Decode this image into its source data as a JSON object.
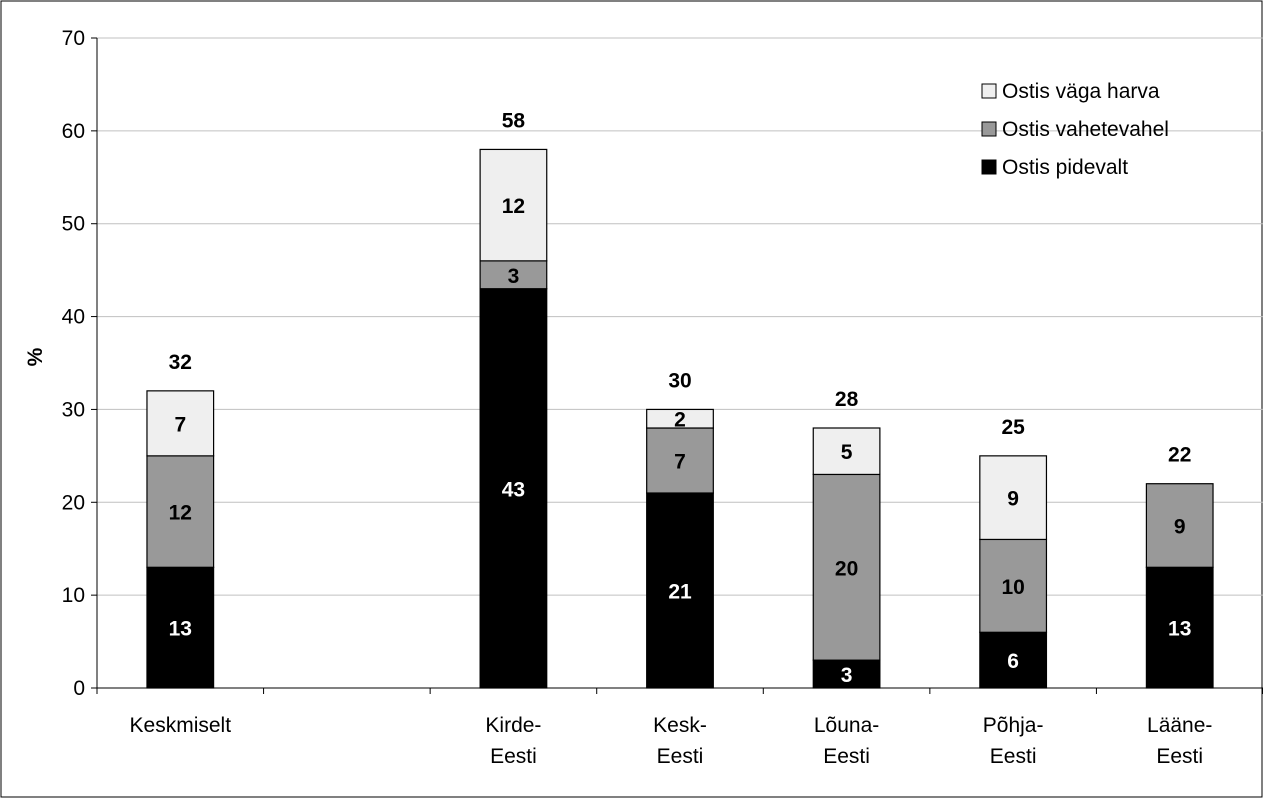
{
  "chart_data": {
    "type": "bar",
    "stacked": true,
    "categories": [
      "Keskmiselt",
      "",
      "Kirde-\nEesti",
      "Kesk-\nEesti",
      "Lõuna-\nEesti",
      "Põhja-\nEesti",
      "Lääne-\nEesti"
    ],
    "series": [
      {
        "name": "Ostis pidevalt",
        "values": [
          13,
          null,
          43,
          21,
          3,
          6,
          13
        ],
        "color": "#000000",
        "label_color": "#ffffff"
      },
      {
        "name": "Ostis vahetevahel",
        "values": [
          12,
          null,
          3,
          7,
          20,
          10,
          9
        ],
        "color": "#999999",
        "label_color": "#000000"
      },
      {
        "name": "Ostis väga harva",
        "values": [
          7,
          null,
          12,
          2,
          5,
          9,
          0
        ],
        "color": "#efefef",
        "label_color": "#000000"
      }
    ],
    "totals": [
      32,
      null,
      58,
      30,
      28,
      25,
      22
    ],
    "ylabel": "%",
    "ylim": [
      0,
      70
    ],
    "yticks": [
      0,
      10,
      20,
      30,
      40,
      50,
      60,
      70
    ],
    "grid": true,
    "legend": {
      "position": "top-right",
      "order": [
        "Ostis väga harva",
        "Ostis vahetevahel",
        "Ostis pidevalt"
      ]
    }
  }
}
